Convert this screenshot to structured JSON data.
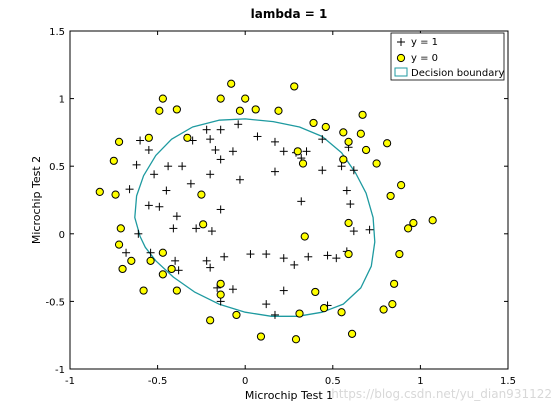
{
  "chart_data": {
    "type": "scatter",
    "title": "lambda = 1",
    "xlabel": "Microchip Test 1",
    "ylabel": "Microchip Test 2",
    "xlim": [
      -1,
      1.5
    ],
    "ylim": [
      -1,
      1.5
    ],
    "x_ticks": [
      "-1",
      "-0.5",
      "0",
      "0.5",
      "1",
      "1.5"
    ],
    "y_ticks": [
      "-1",
      "-0.5",
      "0",
      "0.5",
      "1",
      "1.5"
    ],
    "x_tick_values": [
      -1,
      -0.5,
      0,
      0.5,
      1,
      1.5
    ],
    "y_tick_values": [
      -1,
      -0.5,
      0,
      0.5,
      1,
      1.5
    ],
    "grid": false,
    "legend_position": "top-right",
    "series": [
      {
        "name": "y = 1",
        "marker": "plus",
        "color": "#000000",
        "points": [
          [
            -0.6,
            0.69
          ],
          [
            -0.55,
            0.62
          ],
          [
            -0.62,
            0.51
          ],
          [
            -0.44,
            0.5
          ],
          [
            -0.22,
            0.77
          ],
          [
            -0.14,
            0.77
          ],
          [
            -0.3,
            0.69
          ],
          [
            -0.2,
            0.7
          ],
          [
            -0.17,
            0.62
          ],
          [
            -0.14,
            0.55
          ],
          [
            -0.07,
            0.61
          ],
          [
            -0.04,
            0.81
          ],
          [
            0.07,
            0.72
          ],
          [
            0.17,
            0.68
          ],
          [
            0.22,
            0.61
          ],
          [
            0.29,
            0.6
          ],
          [
            0.32,
            0.56
          ],
          [
            0.17,
            0.46
          ],
          [
            -0.03,
            0.4
          ],
          [
            -0.2,
            0.44
          ],
          [
            -0.31,
            0.37
          ],
          [
            -0.36,
            0.5
          ],
          [
            -0.52,
            0.44
          ],
          [
            -0.66,
            0.33
          ],
          [
            -0.45,
            0.32
          ],
          [
            -0.55,
            0.21
          ],
          [
            -0.49,
            0.2
          ],
          [
            -0.39,
            0.13
          ],
          [
            -0.14,
            0.18
          ],
          [
            -0.19,
            0.02
          ],
          [
            -0.28,
            0.04
          ],
          [
            -0.41,
            0.04
          ],
          [
            -0.61,
            0.0
          ],
          [
            -0.68,
            -0.14
          ],
          [
            -0.54,
            -0.14
          ],
          [
            -0.4,
            -0.2
          ],
          [
            -0.38,
            -0.27
          ],
          [
            -0.22,
            -0.2
          ],
          [
            -0.2,
            -0.25
          ],
          [
            -0.12,
            -0.17
          ],
          [
            0.03,
            -0.15
          ],
          [
            0.12,
            -0.15
          ],
          [
            0.22,
            -0.18
          ],
          [
            0.36,
            -0.17
          ],
          [
            0.47,
            -0.16
          ],
          [
            0.52,
            -0.18
          ],
          [
            0.58,
            -0.13
          ],
          [
            0.62,
            0.02
          ],
          [
            0.71,
            0.03
          ],
          [
            0.6,
            0.22
          ],
          [
            0.58,
            0.32
          ],
          [
            0.62,
            0.47
          ],
          [
            0.55,
            0.5
          ],
          [
            0.59,
            0.64
          ],
          [
            0.44,
            0.7
          ],
          [
            0.28,
            -0.23
          ],
          [
            0.22,
            -0.42
          ],
          [
            0.12,
            -0.52
          ],
          [
            0.17,
            -0.6
          ],
          [
            -0.16,
            -0.4
          ],
          [
            -0.14,
            -0.5
          ],
          [
            -0.07,
            -0.41
          ],
          [
            0.47,
            -0.53
          ],
          [
            0.32,
            0.24
          ],
          [
            0.44,
            0.47
          ],
          [
            0.35,
            0.61
          ]
        ]
      },
      {
        "name": "y = 0",
        "marker": "circle",
        "color": "#ffff00",
        "points": [
          [
            -0.83,
            0.31
          ],
          [
            -0.74,
            0.29
          ],
          [
            -0.75,
            0.54
          ],
          [
            -0.72,
            0.68
          ],
          [
            -0.55,
            0.71
          ],
          [
            -0.49,
            0.91
          ],
          [
            -0.47,
            1.0
          ],
          [
            -0.39,
            0.92
          ],
          [
            -0.33,
            0.71
          ],
          [
            -0.14,
            1.0
          ],
          [
            -0.08,
            1.11
          ],
          [
            -0.03,
            0.91
          ],
          [
            0.0,
            1.0
          ],
          [
            0.06,
            0.92
          ],
          [
            0.19,
            0.91
          ],
          [
            0.28,
            1.09
          ],
          [
            0.39,
            0.82
          ],
          [
            0.46,
            0.79
          ],
          [
            0.56,
            0.75
          ],
          [
            0.67,
            0.88
          ],
          [
            0.66,
            0.74
          ],
          [
            0.59,
            0.68
          ],
          [
            0.81,
            0.67
          ],
          [
            0.75,
            0.52
          ],
          [
            0.89,
            0.36
          ],
          [
            0.83,
            0.28
          ],
          [
            0.96,
            0.08
          ],
          [
            1.07,
            0.1
          ],
          [
            0.93,
            0.04
          ],
          [
            0.88,
            -0.15
          ],
          [
            0.85,
            -0.37
          ],
          [
            0.84,
            -0.52
          ],
          [
            0.79,
            -0.56
          ],
          [
            0.61,
            -0.74
          ],
          [
            0.55,
            -0.58
          ],
          [
            0.45,
            -0.55
          ],
          [
            0.4,
            -0.43
          ],
          [
            0.31,
            -0.59
          ],
          [
            0.29,
            -0.78
          ],
          [
            0.09,
            -0.76
          ],
          [
            -0.05,
            -0.6
          ],
          [
            -0.14,
            -0.45
          ],
          [
            -0.2,
            -0.64
          ],
          [
            -0.14,
            -0.37
          ],
          [
            -0.39,
            -0.42
          ],
          [
            -0.42,
            -0.26
          ],
          [
            -0.47,
            -0.3
          ],
          [
            -0.54,
            -0.2
          ],
          [
            -0.58,
            -0.42
          ],
          [
            -0.7,
            -0.26
          ],
          [
            -0.65,
            -0.2
          ],
          [
            -0.72,
            -0.08
          ],
          [
            -0.71,
            0.04
          ],
          [
            -0.47,
            -0.14
          ],
          [
            -0.24,
            0.07
          ],
          [
            -0.25,
            0.29
          ],
          [
            0.56,
            0.55
          ],
          [
            0.69,
            0.62
          ],
          [
            0.59,
            0.08
          ],
          [
            0.59,
            -0.15
          ],
          [
            0.33,
            0.52
          ],
          [
            0.3,
            0.61
          ],
          [
            0.34,
            -0.02
          ]
        ]
      }
    ],
    "decision_boundary": {
      "name": "Decision boundary",
      "color": "#1e9aa0",
      "points": [
        [
          -0.6,
          -0.02
        ],
        [
          -0.63,
          0.12
        ],
        [
          -0.62,
          0.28
        ],
        [
          -0.58,
          0.43
        ],
        [
          -0.51,
          0.58
        ],
        [
          -0.42,
          0.7
        ],
        [
          -0.3,
          0.79
        ],
        [
          -0.15,
          0.84
        ],
        [
          0.0,
          0.85
        ],
        [
          0.16,
          0.83
        ],
        [
          0.31,
          0.79
        ],
        [
          0.44,
          0.72
        ],
        [
          0.55,
          0.6
        ],
        [
          0.63,
          0.45
        ],
        [
          0.69,
          0.3
        ],
        [
          0.73,
          0.12
        ],
        [
          0.74,
          -0.06
        ],
        [
          0.72,
          -0.24
        ],
        [
          0.66,
          -0.4
        ],
        [
          0.56,
          -0.52
        ],
        [
          0.44,
          -0.58
        ],
        [
          0.3,
          -0.61
        ],
        [
          0.15,
          -0.61
        ],
        [
          0.0,
          -0.58
        ],
        [
          -0.15,
          -0.52
        ],
        [
          -0.29,
          -0.43
        ],
        [
          -0.41,
          -0.32
        ],
        [
          -0.51,
          -0.2
        ],
        [
          -0.57,
          -0.1
        ],
        [
          -0.6,
          -0.02
        ]
      ]
    }
  },
  "watermark": "https://blog.csdn.net/yu_dian931122"
}
